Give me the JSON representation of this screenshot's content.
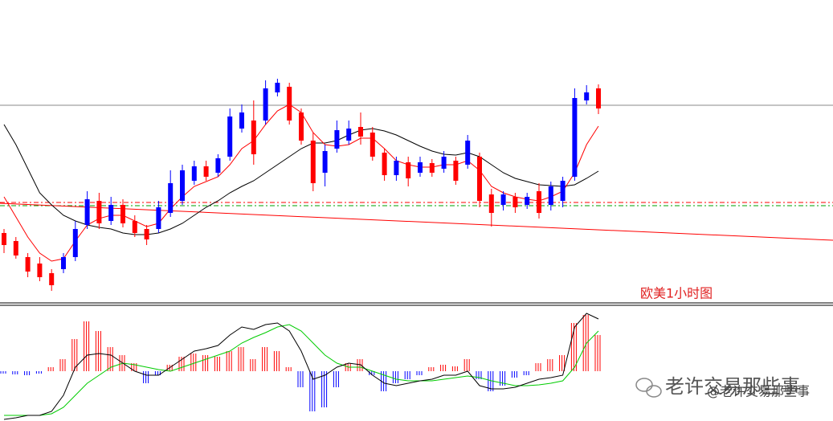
{
  "chart_data": {
    "type": "candlestick",
    "annotation": "欧美1小时图",
    "watermark": "老许交易那些事",
    "watermark_handle": "@老许交易那些事",
    "ylim": [
      0,
      375
    ],
    "up_color": "#0000ff",
    "down_color": "#ff0000",
    "ohlc": [
      [
        85,
        90,
        60,
        70
      ],
      [
        75,
        80,
        53,
        57
      ],
      [
        55,
        60,
        30,
        37
      ],
      [
        47,
        55,
        25,
        30
      ],
      [
        35,
        40,
        13,
        20
      ],
      [
        40,
        60,
        35,
        55
      ],
      [
        55,
        100,
        50,
        90
      ],
      [
        95,
        137,
        90,
        127
      ],
      [
        125,
        135,
        90,
        97
      ],
      [
        100,
        130,
        95,
        120
      ],
      [
        120,
        127,
        92,
        97
      ],
      [
        100,
        107,
        80,
        85
      ],
      [
        90,
        95,
        70,
        77
      ],
      [
        90,
        125,
        85,
        117
      ],
      [
        110,
        163,
        105,
        147
      ],
      [
        125,
        170,
        120,
        163
      ],
      [
        150,
        175,
        145,
        168
      ],
      [
        168,
        175,
        150,
        155
      ],
      [
        160,
        183,
        155,
        178
      ],
      [
        180,
        240,
        175,
        230
      ],
      [
        215,
        245,
        210,
        235
      ],
      [
        225,
        250,
        170,
        183
      ],
      [
        225,
        275,
        220,
        265
      ],
      [
        260,
        277,
        255,
        272
      ],
      [
        267,
        272,
        220,
        225
      ],
      [
        235,
        240,
        195,
        200
      ],
      [
        200,
        210,
        137,
        147
      ],
      [
        160,
        195,
        143,
        187
      ],
      [
        190,
        225,
        185,
        213
      ],
      [
        200,
        225,
        195,
        215
      ],
      [
        217,
        235,
        195,
        205
      ],
      [
        210,
        217,
        175,
        180
      ],
      [
        185,
        190,
        150,
        157
      ],
      [
        157,
        180,
        150,
        175
      ],
      [
        173,
        180,
        143,
        153
      ],
      [
        160,
        180,
        155,
        173
      ],
      [
        172,
        177,
        155,
        160
      ],
      [
        165,
        187,
        160,
        180
      ],
      [
        175,
        180,
        145,
        150
      ],
      [
        170,
        207,
        165,
        200
      ],
      [
        180,
        185,
        117,
        125
      ],
      [
        133,
        140,
        93,
        110
      ],
      [
        120,
        137,
        113,
        133
      ],
      [
        130,
        135,
        110,
        117
      ],
      [
        120,
        135,
        115,
        130
      ],
      [
        137,
        147,
        103,
        110
      ],
      [
        120,
        149,
        113,
        143
      ],
      [
        125,
        155,
        117,
        150
      ],
      [
        155,
        265,
        150,
        253
      ],
      [
        250,
        269,
        245,
        260
      ],
      [
        265,
        270,
        233,
        240
      ]
    ],
    "ma_fast": {
      "color": "#ff0000",
      "values": [
        130,
        105,
        80,
        60,
        50,
        53,
        75,
        95,
        103,
        107,
        107,
        100,
        93,
        97,
        115,
        130,
        143,
        149,
        155,
        170,
        190,
        200,
        220,
        237,
        245,
        235,
        210,
        195,
        193,
        195,
        203,
        203,
        190,
        175,
        170,
        167,
        167,
        170,
        170,
        175,
        163,
        143,
        135,
        130,
        127,
        125,
        130,
        137,
        160,
        195,
        218
      ]
    },
    "ma_slow": {
      "color": "#000000",
      "values": [
        220,
        195,
        165,
        135,
        120,
        107,
        100,
        95,
        92,
        90,
        85,
        83,
        83,
        85,
        90,
        97,
        107,
        117,
        125,
        135,
        143,
        150,
        160,
        170,
        180,
        190,
        197,
        197,
        200,
        207,
        213,
        215,
        212,
        207,
        200,
        193,
        187,
        183,
        182,
        185,
        180,
        170,
        160,
        153,
        149,
        145,
        144,
        143,
        145,
        153,
        162
      ]
    },
    "levels": [
      {
        "value": 244,
        "color": "#888888",
        "style": "solid"
      },
      {
        "value": 123,
        "color": "#ff0000",
        "style": "dashed"
      },
      {
        "value": 119,
        "color": "#00a000",
        "style": "dashed"
      }
    ],
    "trendline": {
      "color": "#ff0000",
      "values": [
        122,
        76
      ]
    },
    "macd": {
      "ylim": [
        -62,
        80
      ],
      "hist_up_color": "#ff0000",
      "hist_down_color": "#0000ff",
      "macd_color": "#000000",
      "signal_color": "#00cc00",
      "histogram": [
        -3,
        -4,
        -5,
        -3,
        5,
        15,
        40,
        62,
        50,
        30,
        20,
        10,
        -15,
        -5,
        8,
        18,
        22,
        20,
        18,
        25,
        30,
        15,
        30,
        25,
        5,
        -20,
        -50,
        -45,
        -20,
        10,
        15,
        -5,
        -25,
        -15,
        -10,
        -5,
        5,
        8,
        6,
        15,
        -10,
        -25,
        -18,
        -8,
        -5,
        10,
        15,
        20,
        60,
        70,
        45
      ],
      "macd": [
        -60,
        -58,
        -55,
        -55,
        -50,
        -30,
        5,
        20,
        22,
        20,
        10,
        0,
        -5,
        -5,
        5,
        15,
        25,
        28,
        32,
        45,
        55,
        52,
        58,
        60,
        50,
        25,
        -10,
        -5,
        5,
        10,
        8,
        -5,
        -15,
        -18,
        -15,
        -12,
        -10,
        -5,
        -5,
        0,
        -18,
        -22,
        -22,
        -20,
        -15,
        -10,
        -8,
        -5,
        55,
        72,
        65
      ],
      "signal": [
        -55,
        -55,
        -55,
        -55,
        -53,
        -45,
        -30,
        -15,
        -5,
        5,
        10,
        8,
        5,
        2,
        0,
        5,
        10,
        15,
        20,
        25,
        35,
        42,
        48,
        55,
        58,
        50,
        35,
        20,
        10,
        5,
        5,
        0,
        -5,
        -10,
        -12,
        -12,
        -12,
        -10,
        -8,
        -6,
        -8,
        -12,
        -15,
        -18,
        -18,
        -17,
        -15,
        -12,
        5,
        35,
        50
      ]
    }
  }
}
